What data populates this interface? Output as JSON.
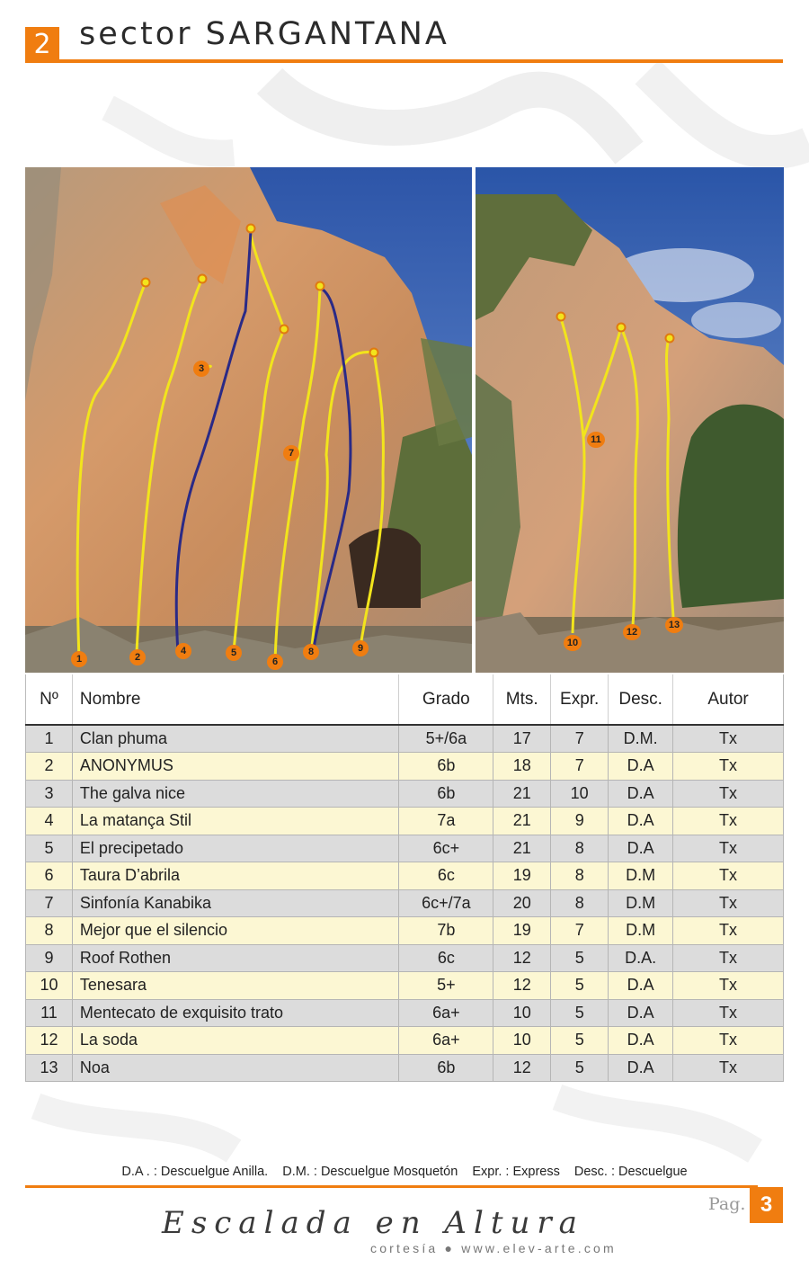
{
  "header": {
    "sector_number": "2",
    "title": "sector SARGANTANA"
  },
  "photos": {
    "left_markers": [
      "1",
      "2",
      "3",
      "4",
      "5",
      "6",
      "7",
      "8",
      "9"
    ],
    "right_markers": [
      "10",
      "11",
      "12",
      "13"
    ]
  },
  "table": {
    "headers": {
      "num": "Nº",
      "name": "Nombre",
      "grade": "Grado",
      "meters": "Mts.",
      "express": "Expr.",
      "descent": "Desc.",
      "author": "Autor"
    },
    "rows": [
      [
        "1",
        "Clan phuma",
        "5+/6a",
        "17",
        "7",
        "D.M.",
        "Tx"
      ],
      [
        "2",
        "ANONYMUS",
        "6b",
        "18",
        "7",
        "D.A",
        "Tx"
      ],
      [
        "3",
        "The galva nice",
        "6b",
        "21",
        "10",
        "D.A",
        "Tx"
      ],
      [
        "4",
        "La matança Stil",
        "7a",
        "21",
        "9",
        "D.A",
        "Tx"
      ],
      [
        "5",
        "El precipetado",
        "6c+",
        "21",
        "8",
        "D.A",
        "Tx"
      ],
      [
        "6",
        "Taura D’abrila",
        "6c",
        "19",
        "8",
        "D.M",
        "Tx"
      ],
      [
        "7",
        "Sinfonía Kanabika",
        "6c+/7a",
        "20",
        "8",
        "D.M",
        "Tx"
      ],
      [
        "8",
        "Mejor que el silencio",
        "7b",
        "19",
        "7",
        "D.M",
        "Tx"
      ],
      [
        "9",
        "Roof Rothen",
        "6c",
        "12",
        "5",
        "D.A.",
        "Tx"
      ],
      [
        "10",
        "Tenesara",
        "5+",
        "12",
        "5",
        "D.A",
        "Tx"
      ],
      [
        "11",
        "Mentecato de exquisito trato",
        "6a+",
        "10",
        "5",
        "D.A",
        "Tx"
      ],
      [
        "12",
        "La soda",
        "6a+",
        "10",
        "5",
        "D.A",
        "Tx"
      ],
      [
        "13",
        "Noa",
        "6b",
        "12",
        "5",
        "D.A",
        "Tx"
      ]
    ]
  },
  "legend": {
    "da": "D.A .  : Descuelgue Anilla.",
    "dm": "D.M.  : Descuelgue Mosquetón",
    "expr": "Expr.   : Express",
    "desc": "Desc.  : Descuelgue"
  },
  "footer": {
    "pag_label": "Pag.",
    "page_number": "3",
    "brand": "Escalada en Altura",
    "tagline": "cortesía ● www.elev-arte.com"
  },
  "colors": {
    "accent": "#f07d10",
    "route_yellow": "#f2e41c",
    "route_blue": "#2a2a86",
    "row_gray": "#dcdcdc",
    "row_cream": "#fcf7d3"
  }
}
